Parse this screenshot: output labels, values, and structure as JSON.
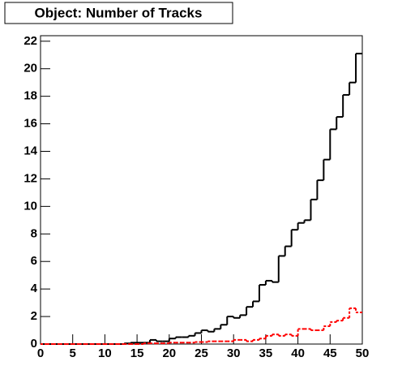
{
  "chart_data": {
    "type": "histogram",
    "title": "Object: Number of Tracks",
    "bins": [
      0,
      1,
      2,
      3,
      4,
      5,
      6,
      7,
      8,
      9,
      10,
      11,
      12,
      13,
      14,
      15,
      16,
      17,
      18,
      19,
      20,
      21,
      22,
      23,
      24,
      25,
      26,
      27,
      28,
      29,
      30,
      31,
      32,
      33,
      34,
      35,
      36,
      37,
      38,
      39,
      40,
      41,
      42,
      43,
      44,
      45,
      46,
      47,
      48,
      49,
      50
    ],
    "series": [
      {
        "color": "#000000",
        "dash": false,
        "values": [
          0,
          0,
          0,
          0,
          0,
          0,
          0,
          0,
          0,
          0,
          0,
          0,
          0,
          0.05,
          0.1,
          0.1,
          0.1,
          0.3,
          0.2,
          0.2,
          0.4,
          0.5,
          0.5,
          0.6,
          0.8,
          1.0,
          0.9,
          1.1,
          1.4,
          2.0,
          1.9,
          2.1,
          2.7,
          3.1,
          4.3,
          4.6,
          4.5,
          6.4,
          7.1,
          8.3,
          8.8,
          9.0,
          10.5,
          11.9,
          13.4,
          15.6,
          16.5,
          18.1,
          19.0,
          21.1
        ]
      },
      {
        "color": "#ff0000",
        "dash": true,
        "values": [
          0,
          0,
          0,
          0,
          0,
          0,
          0,
          0,
          0,
          0,
          0,
          0,
          0,
          0,
          0,
          0,
          0.05,
          0.05,
          0.05,
          0.05,
          0.1,
          0.1,
          0.1,
          0.1,
          0.15,
          0.15,
          0.2,
          0.2,
          0.2,
          0.2,
          0.3,
          0.3,
          0.2,
          0.3,
          0.4,
          0.6,
          0.7,
          0.6,
          0.7,
          0.6,
          1.1,
          1.1,
          1.0,
          1.0,
          1.3,
          1.6,
          1.7,
          1.9,
          2.6,
          2.3
        ]
      }
    ],
    "xlim": [
      0,
      50
    ],
    "ylim": [
      0,
      22.4
    ],
    "xticks": [
      0,
      5,
      10,
      15,
      20,
      25,
      30,
      35,
      40,
      45,
      50
    ],
    "yticks": [
      0,
      2,
      4,
      6,
      8,
      10,
      12,
      14,
      16,
      18,
      20,
      22
    ]
  }
}
